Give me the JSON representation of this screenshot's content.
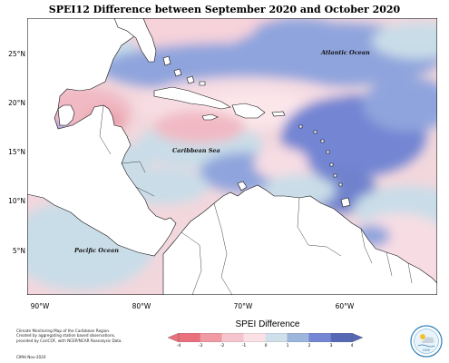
{
  "title": "SPEI12 Difference between September 2020 and October 2020",
  "lat_labels": [
    "25°N",
    "20°N",
    "15°N",
    "10°N",
    "5°N"
  ],
  "lon_labels": [
    "90°W",
    "80°W",
    "70°W",
    "60°W"
  ],
  "seas": {
    "atlantic": "Atlantic Ocean",
    "caribbean": "Caribbean Sea",
    "pacific": "Pacific Ocean"
  },
  "credit": {
    "line1": "Climate Monitoring Map of the Caribbean Region.",
    "line2": "Created by aggregating station based observations,",
    "line3": "provided by CariCOF, with NCEP/NCAR Reanalysis Data.",
    "year": "CIMH Nov-2020"
  },
  "legend": {
    "title": "SPEI Difference",
    "ticks": [
      "-4",
      "-3",
      "-2",
      "-1",
      "0",
      "1",
      "2",
      "3",
      "4"
    ],
    "colors": [
      "#e9707c",
      "#f09aa4",
      "#f6c4cc",
      "#fbe0e5",
      "#cfe0ea",
      "#9db6db",
      "#7385d3",
      "#5568b6"
    ]
  },
  "logo_label": "CIMH",
  "colors": {
    "sea_pos_light": "#c9dde8",
    "sea_pos_mid": "#8fa4dd",
    "sea_pos_strong": "#6f82cc",
    "sea_neg_light": "#f7dde3",
    "sea_neg_mid": "#f1b9c3",
    "land": "#ffffff"
  }
}
